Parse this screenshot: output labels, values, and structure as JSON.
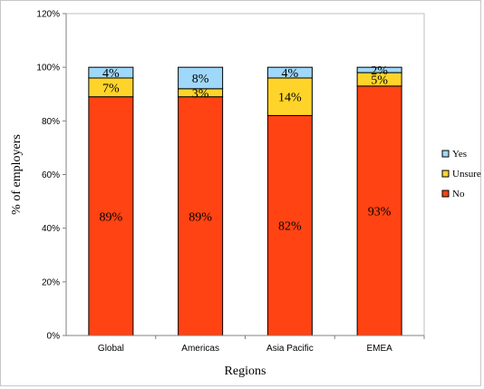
{
  "chart_data": {
    "type": "bar",
    "stacked": true,
    "categories": [
      "Global",
      "Americas",
      "Asia Pacific",
      "EMEA"
    ],
    "series": [
      {
        "name": "No",
        "values": [
          89,
          89,
          82,
          93
        ],
        "labels": [
          "89%",
          "89%",
          "82%",
          "93%"
        ],
        "color": "#ff4313"
      },
      {
        "name": "Unsure",
        "values": [
          7,
          3,
          14,
          5
        ],
        "labels": [
          "7%",
          "3%",
          "14%",
          "5%"
        ],
        "color": "#ffd42a"
      },
      {
        "name": "Yes",
        "values": [
          4,
          8,
          4,
          2
        ],
        "labels": [
          "4%",
          "8%",
          "4%",
          "2%"
        ],
        "color": "#9fd8fa"
      }
    ],
    "xlabel": "Regions",
    "ylabel": "% of employers",
    "ylim": [
      0,
      120
    ],
    "yticks": [
      0,
      20,
      40,
      60,
      80,
      100,
      120
    ],
    "ytick_labels": [
      "0%",
      "20%",
      "40%",
      "60%",
      "80%",
      "100%",
      "120%"
    ],
    "grid": false,
    "legend": {
      "position": "right",
      "order": [
        "Yes",
        "Unsure",
        "No"
      ]
    }
  }
}
